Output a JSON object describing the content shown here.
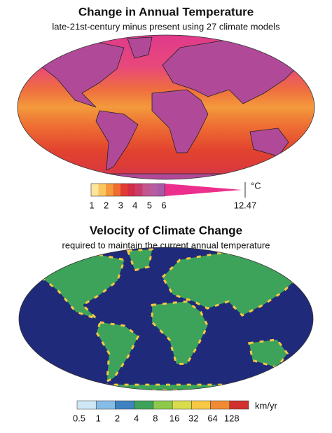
{
  "panels": [
    {
      "title": "Change in Annual Temperature",
      "subtitle": "late-21st-century minus present using 27 climate models",
      "colorbar": {
        "colors": [
          "#fde59a",
          "#f9c660",
          "#f49a3c",
          "#ee6d30",
          "#e23b33",
          "#d22c47",
          "#c93c6a",
          "#c2568e",
          "#b85ca2",
          "#a85aa8"
        ],
        "labels": [
          1,
          2,
          3,
          4,
          5,
          6
        ],
        "end_label": 12.47,
        "end_color": "#ec2f8c",
        "unit": "°C"
      }
    },
    {
      "title": "Velocity of Climate Change",
      "subtitle": "required to maintain the current annual temperature",
      "colorbar": {
        "colors": [
          "#cfe8f6",
          "#86bde6",
          "#3f82c2",
          "#3da35a",
          "#8fc94c",
          "#d9dd4b",
          "#f6c843",
          "#f08b33",
          "#d0302e"
        ],
        "labels": [
          0.5,
          1,
          2,
          4,
          8,
          16,
          32,
          64,
          128
        ],
        "unit": "km/yr"
      }
    }
  ]
}
